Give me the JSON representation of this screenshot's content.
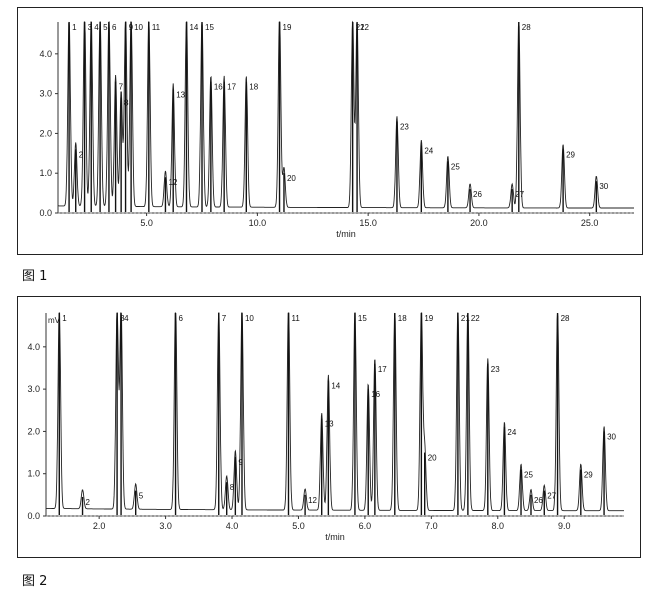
{
  "figure_labels": {
    "fig1": "图 1",
    "fig2": "图 2"
  },
  "chart_data": [
    {
      "type": "line",
      "xlabel": "t/min",
      "ylabel": "",
      "xlim": [
        1,
        27
      ],
      "ylim": [
        0,
        4.8
      ],
      "x_ticks": [
        5.0,
        10.0,
        15.0,
        20.0,
        25.0
      ],
      "x_tick_labels": [
        "5.0",
        "10.0",
        "15.0",
        "20.0",
        "25.0"
      ],
      "y_ticks": [
        0.0,
        1.0,
        2.0,
        3.0,
        4.0
      ],
      "y_tick_labels": [
        "0.0",
        "1.0",
        "2.0",
        "3.0",
        "4.0"
      ],
      "peaks": [
        {
          "label": "1",
          "x": 1.5,
          "y": 4.8
        },
        {
          "label": "2",
          "x": 1.8,
          "y": 1.6
        },
        {
          "label": "3",
          "x": 2.2,
          "y": 4.8
        },
        {
          "label": "4",
          "x": 2.5,
          "y": 4.8
        },
        {
          "label": "5",
          "x": 2.9,
          "y": 4.8
        },
        {
          "label": "6",
          "x": 3.3,
          "y": 4.8
        },
        {
          "label": "7",
          "x": 3.6,
          "y": 3.3
        },
        {
          "label": "8",
          "x": 3.85,
          "y": 2.9
        },
        {
          "label": "9",
          "x": 4.05,
          "y": 4.8
        },
        {
          "label": "10",
          "x": 4.3,
          "y": 4.8
        },
        {
          "label": "11",
          "x": 5.1,
          "y": 4.8
        },
        {
          "label": "12",
          "x": 5.85,
          "y": 0.9
        },
        {
          "label": "13",
          "x": 6.2,
          "y": 3.1
        },
        {
          "label": "14",
          "x": 6.8,
          "y": 4.8
        },
        {
          "label": "15",
          "x": 7.5,
          "y": 4.8
        },
        {
          "label": "16",
          "x": 7.9,
          "y": 3.3
        },
        {
          "label": "17",
          "x": 8.5,
          "y": 3.3
        },
        {
          "label": "18",
          "x": 9.5,
          "y": 3.3
        },
        {
          "label": "19",
          "x": 11.0,
          "y": 4.8
        },
        {
          "label": "20",
          "x": 11.2,
          "y": 1.0
        },
        {
          "label": "21",
          "x": 14.3,
          "y": 4.8
        },
        {
          "label": "22",
          "x": 14.5,
          "y": 4.8
        },
        {
          "label": "23",
          "x": 16.3,
          "y": 2.3
        },
        {
          "label": "24",
          "x": 17.4,
          "y": 1.7
        },
        {
          "label": "25",
          "x": 18.6,
          "y": 1.3
        },
        {
          "label": "26",
          "x": 19.6,
          "y": 0.6
        },
        {
          "label": "27",
          "x": 21.5,
          "y": 0.6
        },
        {
          "label": "28",
          "x": 21.8,
          "y": 4.8
        },
        {
          "label": "29",
          "x": 23.8,
          "y": 1.6
        },
        {
          "label": "30",
          "x": 25.3,
          "y": 0.8
        }
      ]
    },
    {
      "type": "line",
      "xlabel": "t/min",
      "ylabel": "",
      "y_unit": "mV",
      "xlim": [
        1.2,
        9.9
      ],
      "ylim": [
        0,
        4.8
      ],
      "x_ticks": [
        2.0,
        3.0,
        4.0,
        5.0,
        6.0,
        7.0,
        8.0,
        9.0
      ],
      "x_tick_labels": [
        "2.0",
        "3.0",
        "4.0",
        "5.0",
        "6.0",
        "7.0",
        "8.0",
        "9.0"
      ],
      "y_ticks": [
        0.0,
        1.0,
        2.0,
        3.0,
        4.0
      ],
      "y_tick_labels": [
        "0.0",
        "1.0",
        "2.0",
        "3.0",
        "4.0"
      ],
      "peaks": [
        {
          "label": "1",
          "x": 1.4,
          "y": 4.8
        },
        {
          "label": "2",
          "x": 1.75,
          "y": 0.45
        },
        {
          "label": "3",
          "x": 2.27,
          "y": 4.8
        },
        {
          "label": "4",
          "x": 2.33,
          "y": 4.8
        },
        {
          "label": "5",
          "x": 2.55,
          "y": 0.6
        },
        {
          "label": "6",
          "x": 3.15,
          "y": 4.8
        },
        {
          "label": "7",
          "x": 3.8,
          "y": 4.8
        },
        {
          "label": "8",
          "x": 3.92,
          "y": 0.8
        },
        {
          "label": "9",
          "x": 4.05,
          "y": 1.4
        },
        {
          "label": "10",
          "x": 4.15,
          "y": 4.8
        },
        {
          "label": "11",
          "x": 4.85,
          "y": 4.8
        },
        {
          "label": "12",
          "x": 5.1,
          "y": 0.5
        },
        {
          "label": "13",
          "x": 5.35,
          "y": 2.3
        },
        {
          "label": "14",
          "x": 5.45,
          "y": 3.2
        },
        {
          "label": "15",
          "x": 5.85,
          "y": 4.8
        },
        {
          "label": "16",
          "x": 6.05,
          "y": 3.0
        },
        {
          "label": "17",
          "x": 6.15,
          "y": 3.6
        },
        {
          "label": "18",
          "x": 6.45,
          "y": 4.8
        },
        {
          "label": "19",
          "x": 6.85,
          "y": 4.8
        },
        {
          "label": "20",
          "x": 6.9,
          "y": 1.5
        },
        {
          "label": "21",
          "x": 7.4,
          "y": 4.8
        },
        {
          "label": "22",
          "x": 7.55,
          "y": 4.8
        },
        {
          "label": "23",
          "x": 7.85,
          "y": 3.6
        },
        {
          "label": "24",
          "x": 8.1,
          "y": 2.1
        },
        {
          "label": "25",
          "x": 8.35,
          "y": 1.1
        },
        {
          "label": "26",
          "x": 8.5,
          "y": 0.5
        },
        {
          "label": "27",
          "x": 8.7,
          "y": 0.6
        },
        {
          "label": "28",
          "x": 8.9,
          "y": 4.8
        },
        {
          "label": "29",
          "x": 9.25,
          "y": 1.1
        },
        {
          "label": "30",
          "x": 9.6,
          "y": 2.0
        }
      ]
    }
  ]
}
